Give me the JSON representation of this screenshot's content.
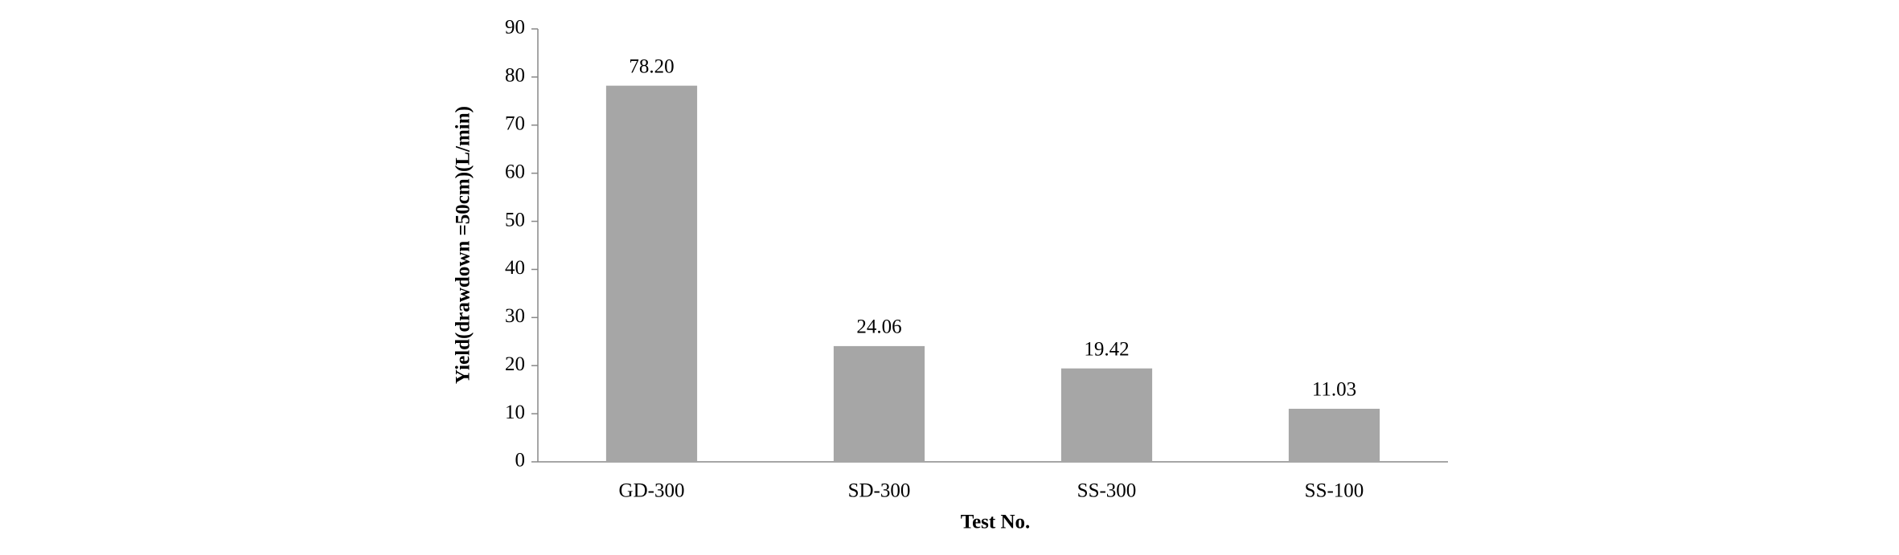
{
  "chart_data": {
    "type": "bar",
    "x_label": "Test No.",
    "y_label": "Yield(drawdown =50cm)(L/min)",
    "categories": [
      "GD-300",
      "SD-300",
      "SS-300",
      "SS-100"
    ],
    "values": [
      78.2,
      24.06,
      19.42,
      11.03
    ],
    "value_labels": [
      "78.20",
      "24.06",
      "19.42",
      "11.03"
    ],
    "color": "#a6a6a6",
    "ylim": [
      0,
      90
    ],
    "yticks": [
      0,
      10,
      20,
      30,
      40,
      50,
      60,
      70,
      80,
      90
    ],
    "grid": false
  }
}
